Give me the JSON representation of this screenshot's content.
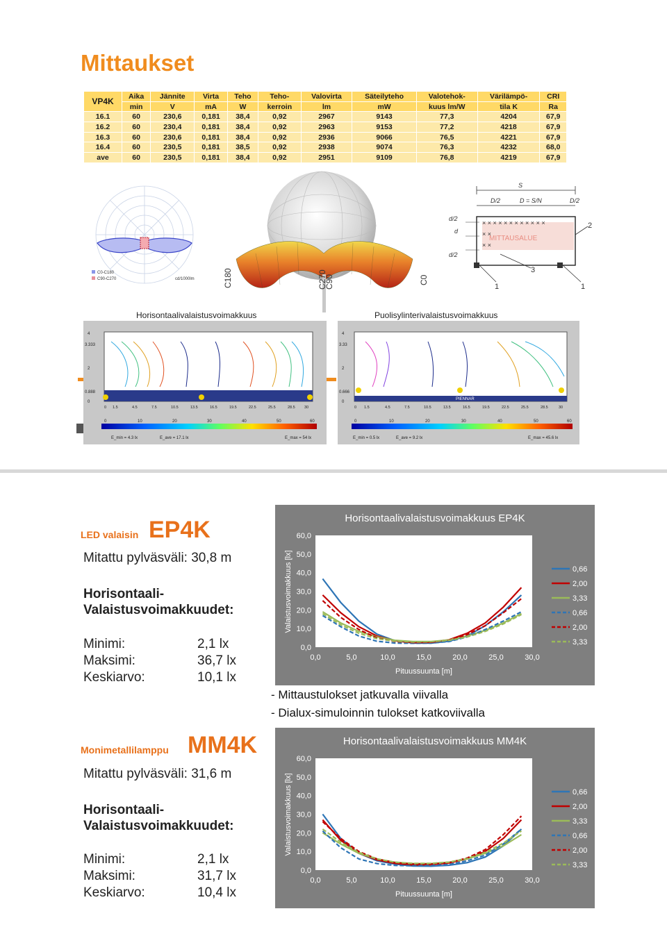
{
  "page1": {
    "title": "Mittaukset",
    "table": {
      "corner": "VP4K",
      "head1": [
        "Aika",
        "Jännite",
        "Virta",
        "Teho",
        "Teho-",
        "Valovirta",
        "Säteilyteho",
        "Valotehok-",
        "Värilämpö-",
        "CRI"
      ],
      "head2": [
        "min",
        "V",
        "mA",
        "W",
        "kerroin",
        "lm",
        "mW",
        "kuus lm/W",
        "tila   K",
        "Ra"
      ],
      "rows": [
        {
          "label": "16.1",
          "cells": [
            "60",
            "230,6",
            "0,181",
            "38,4",
            "0,92",
            "2967",
            "9143",
            "77,3",
            "4204",
            "67,9"
          ]
        },
        {
          "label": "16.2",
          "cells": [
            "60",
            "230,4",
            "0,181",
            "38,4",
            "0,92",
            "2963",
            "9153",
            "77,2",
            "4218",
            "67,9"
          ]
        },
        {
          "label": "16.3",
          "cells": [
            "60",
            "230,6",
            "0,181",
            "38,4",
            "0,92",
            "2936",
            "9066",
            "76,5",
            "4221",
            "67,9"
          ]
        },
        {
          "label": "16.4",
          "cells": [
            "60",
            "230,5",
            "0,181",
            "38,5",
            "0,92",
            "2938",
            "9074",
            "76,3",
            "4232",
            "68,0"
          ]
        },
        {
          "label": "ave",
          "cells": [
            "60",
            "230,5",
            "0,181",
            "38,4",
            "0,92",
            "2951",
            "9109",
            "76,8",
            "4219",
            "67,9"
          ]
        }
      ]
    },
    "captions": {
      "left": "Horisontaalivalaistusvoimakkuus",
      "right": "Puolisylinterivalaistusvoimakkuus"
    },
    "polar_legend": [
      "C0-C180",
      "C90-C270"
    ],
    "polar_unit": "cd/1000lm",
    "solid_labels": [
      "C180",
      "C270",
      "C90",
      "C0"
    ],
    "layout_labels": {
      "s": "S",
      "d2": "D/2",
      "dsn": "D = S/N",
      "d2r": "D/2",
      "area": "MITTAUSALUE",
      "n1": "1",
      "n2": "2",
      "n3": "3",
      "dd1": "d/2",
      "dd2": "d",
      "dd3": "d/2"
    },
    "iso_left": {
      "y_ticks": [
        "4",
        "3.333",
        "2",
        "0.888",
        "0"
      ],
      "x_ticks": [
        "0",
        "1.5",
        "4.5",
        "7.5",
        "10.5",
        "13.5",
        "16.5",
        "19.5",
        "22.5",
        "25.5",
        "28.5",
        "30"
      ],
      "scale_ticks": [
        "0",
        "10",
        "20",
        "30",
        "40",
        "50",
        "60"
      ],
      "stats": [
        "E_min = 4.3 lx",
        "E_ave = 17.1 lx",
        "E_max = 54 lx"
      ]
    },
    "iso_right": {
      "y_ticks": [
        "4",
        "3.33",
        "2",
        "0.666",
        "0"
      ],
      "x_ticks": [
        "0",
        "1.5",
        "4.5",
        "7.5",
        "10.5",
        "13.5",
        "16.5",
        "19.5",
        "22.5",
        "25.5",
        "28.5",
        "30"
      ],
      "scale_ticks": [
        "0",
        "10",
        "20",
        "30",
        "40",
        "50",
        "60"
      ],
      "stats": [
        "E_min = 0.5 lx",
        "E_ave = 9.2 lx",
        "E_max = 45.6 lx"
      ],
      "band_label": "PIENNAR"
    }
  },
  "page2": {
    "ep4k": {
      "small": "LED valaisin",
      "big": "EP4K",
      "spacing": "Mitattu pylväsväli: 30,8 m",
      "heading1": "Horisontaali-",
      "heading2": "Valaistusvoimakkuudet:",
      "min_label": "Minimi:",
      "min_val": "2,1 lx",
      "max_label": "Maksimi:",
      "max_val": "36,7 lx",
      "avg_label": "Keskiarvo:",
      "avg_val": "10,1 lx"
    },
    "mm4k": {
      "small": "Monimetallilamppu",
      "big": "MM4K",
      "spacing": "Mitattu pylväsväli: 31,6 m",
      "heading1": "Horisontaali-",
      "heading2": "Valaistusvoimakkuudet:",
      "min_label": "Minimi:",
      "min_val": "2,1 lx",
      "max_label": "Maksimi:",
      "max_val": "31,7 lx",
      "avg_label": "Keskiarvo:",
      "avg_val": "10,4 lx"
    },
    "notes": [
      "- Mittaustulokset jatkuvalla viivalla",
      "- Dialux-simuloinnin tulokset katkoviivalla"
    ]
  },
  "colors": {
    "accent": "#f08c1e",
    "blue": "#2e75b6",
    "red": "#c00000",
    "green": "#9bbb59"
  },
  "chart_data": [
    {
      "type": "line",
      "title": "Horisontaalivalaistusvoimakkuus EP4K",
      "xlabel": "Pituussuunta [m]",
      "ylabel": "Valaistusvoimakkuus [lx]",
      "xlim": [
        0,
        30
      ],
      "ylim": [
        0,
        60
      ],
      "x_ticks": [
        "0,0",
        "5,0",
        "10,0",
        "15,0",
        "20,0",
        "25,0",
        "30,0"
      ],
      "y_ticks": [
        "0,0",
        "10,0",
        "20,0",
        "30,0",
        "40,0",
        "50,0",
        "60,0"
      ],
      "legend_position": "right",
      "x": [
        1,
        3.5,
        6,
        8.5,
        11,
        13.5,
        16,
        18.5,
        21,
        23.5,
        26,
        28.5
      ],
      "series": [
        {
          "name": "0,66",
          "style": "solid",
          "color": "#2e75b6",
          "values": [
            36.7,
            24,
            14,
            7,
            3.5,
            2.2,
            2.2,
            3.2,
            6,
            11.5,
            19,
            28
          ]
        },
        {
          "name": "2,00",
          "style": "solid",
          "color": "#c00000",
          "values": [
            28,
            18.5,
            11,
            6,
            3.5,
            2.5,
            2.6,
            4,
            7.5,
            13,
            21.5,
            32
          ]
        },
        {
          "name": "3,33",
          "style": "solid",
          "color": "#9bbb59",
          "values": [
            19,
            13,
            8.5,
            5.5,
            3.7,
            3,
            3,
            3.9,
            6,
            9,
            13,
            18
          ]
        },
        {
          "name": "0,66",
          "style": "dashed",
          "color": "#2e75b6",
          "values": [
            17,
            11,
            6,
            3.2,
            2.2,
            2.1,
            2.2,
            3,
            5.5,
            9.5,
            14,
            19
          ]
        },
        {
          "name": "2,00",
          "style": "dashed",
          "color": "#c00000",
          "values": [
            25,
            16,
            9.5,
            5,
            3,
            2.5,
            2.6,
            3.8,
            6.8,
            11.5,
            18.5,
            26
          ]
        },
        {
          "name": "3,33",
          "style": "dashed",
          "color": "#9bbb59",
          "values": [
            18,
            12,
            7.5,
            4.6,
            3.2,
            2.8,
            2.9,
            3.7,
            5.5,
            8.5,
            12.5,
            17.5
          ]
        }
      ]
    },
    {
      "type": "line",
      "title": "Horisontaalivalaistusvoimakkuus MM4K",
      "xlabel": "Pituussuunta [m]",
      "ylabel": "Valaistusvoimakkuus [lx]",
      "xlim": [
        0,
        30
      ],
      "ylim": [
        0,
        60
      ],
      "x_ticks": [
        "0,0",
        "5,0",
        "10,0",
        "15,0",
        "20,0",
        "25,0",
        "30,0"
      ],
      "y_ticks": [
        "0,0",
        "10,0",
        "20,0",
        "30,0",
        "40,0",
        "50,0",
        "60,0"
      ],
      "legend_position": "right",
      "x": [
        1,
        3.5,
        6,
        8.5,
        11,
        13.5,
        16,
        18.5,
        21,
        23.5,
        26,
        28.5
      ],
      "series": [
        {
          "name": "0,66",
          "style": "solid",
          "color": "#2e75b6",
          "values": [
            30,
            17,
            9,
            5,
            3.2,
            2.2,
            2.1,
            2.6,
            4,
            7,
            13,
            22
          ]
        },
        {
          "name": "2,00",
          "style": "solid",
          "color": "#c00000",
          "values": [
            27,
            16,
            9,
            5.5,
            3.6,
            2.8,
            2.9,
            3.8,
            6,
            10,
            17,
            27
          ]
        },
        {
          "name": "3,33",
          "style": "solid",
          "color": "#9bbb59",
          "values": [
            20,
            14,
            9,
            6,
            4.2,
            3.5,
            3.5,
            4.2,
            6,
            9,
            13,
            19
          ]
        },
        {
          "name": "0,66",
          "style": "dashed",
          "color": "#2e75b6",
          "values": [
            21,
            12,
            6,
            3.5,
            2.5,
            2.3,
            2.4,
            3,
            5,
            8,
            14,
            22
          ]
        },
        {
          "name": "2,00",
          "style": "dashed",
          "color": "#c00000",
          "values": [
            26,
            17,
            10,
            6,
            4,
            3.2,
            3.2,
            4,
            6.5,
            11,
            19,
            29
          ]
        },
        {
          "name": "3,33",
          "style": "dashed",
          "color": "#9bbb59",
          "values": [
            22,
            15,
            9.5,
            6,
            4.2,
            3.6,
            3.6,
            4.3,
            6.2,
            9.5,
            14.5,
            21
          ]
        }
      ]
    }
  ]
}
